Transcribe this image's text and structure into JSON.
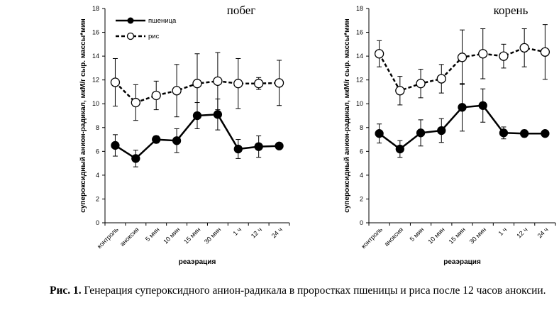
{
  "caption": {
    "label": "Рис. 1.",
    "text": " Генерация супероксидного анион-радикала в проростках пшеницы и риса после 12 часов аноксии."
  },
  "legend": {
    "wheat": "пшеница",
    "rice": "рис"
  },
  "chart_data": [
    {
      "type": "line",
      "title": "побег",
      "xlabel": "реаэрация",
      "ylabel": "супероксидный анион-радикал, мкМ/г сыр. массы*мин",
      "categories": [
        "контроль",
        "аноксия",
        "5 мин",
        "10 мин",
        "15 мин",
        "30 мин",
        "1 ч",
        "12 ч",
        "24 ч"
      ],
      "ylim": [
        0,
        18
      ],
      "yticks": [
        0,
        2,
        4,
        6,
        8,
        10,
        12,
        14,
        16,
        18
      ],
      "legend_position": "top-left",
      "grid": false,
      "series": [
        {
          "name": "пшеница",
          "style": "solid",
          "marker": "filled-circle",
          "color": "#000000",
          "values": [
            6.5,
            5.4,
            7.0,
            6.9,
            9.0,
            9.1,
            6.2,
            6.4,
            6.45
          ],
          "errors": [
            0.9,
            0.7,
            0.3,
            1.0,
            1.1,
            1.3,
            0.8,
            0.9,
            0.2
          ]
        },
        {
          "name": "рис",
          "style": "dashed",
          "marker": "open-circle",
          "color": "#000000",
          "values": [
            11.8,
            10.1,
            10.7,
            11.1,
            11.7,
            11.9,
            11.7,
            11.7,
            11.75
          ],
          "errors": [
            2.0,
            1.5,
            1.2,
            2.2,
            2.5,
            2.4,
            2.1,
            0.5,
            1.9
          ]
        }
      ]
    },
    {
      "type": "line",
      "title": "корень",
      "xlabel": "реаэрация",
      "ylabel": "супероксидный анион-радикал, мкМ/г сыр. массы*мин",
      "categories": [
        "контроль",
        "аноксия",
        "5 мин",
        "10 мин",
        "15 мин",
        "30 мин",
        "1 ч",
        "12 ч",
        "24 ч"
      ],
      "ylim": [
        0,
        18
      ],
      "yticks": [
        0,
        2,
        4,
        6,
        8,
        10,
        12,
        14,
        16,
        18
      ],
      "legend_position": "none",
      "grid": false,
      "series": [
        {
          "name": "пшеница",
          "style": "solid",
          "marker": "filled-circle",
          "color": "#000000",
          "values": [
            7.5,
            6.2,
            7.55,
            7.75,
            9.7,
            9.85,
            7.55,
            7.5,
            7.5
          ],
          "errors": [
            0.8,
            0.7,
            1.1,
            1.0,
            2.0,
            1.4,
            0.5,
            0.3,
            0.15
          ]
        },
        {
          "name": "рис",
          "style": "dashed",
          "marker": "open-circle",
          "color": "#000000",
          "values": [
            14.2,
            11.1,
            11.7,
            12.1,
            13.9,
            14.2,
            14.0,
            14.7,
            14.35
          ],
          "errors": [
            1.1,
            1.2,
            1.2,
            1.2,
            2.3,
            2.1,
            1.0,
            1.6,
            2.3
          ]
        }
      ]
    }
  ]
}
